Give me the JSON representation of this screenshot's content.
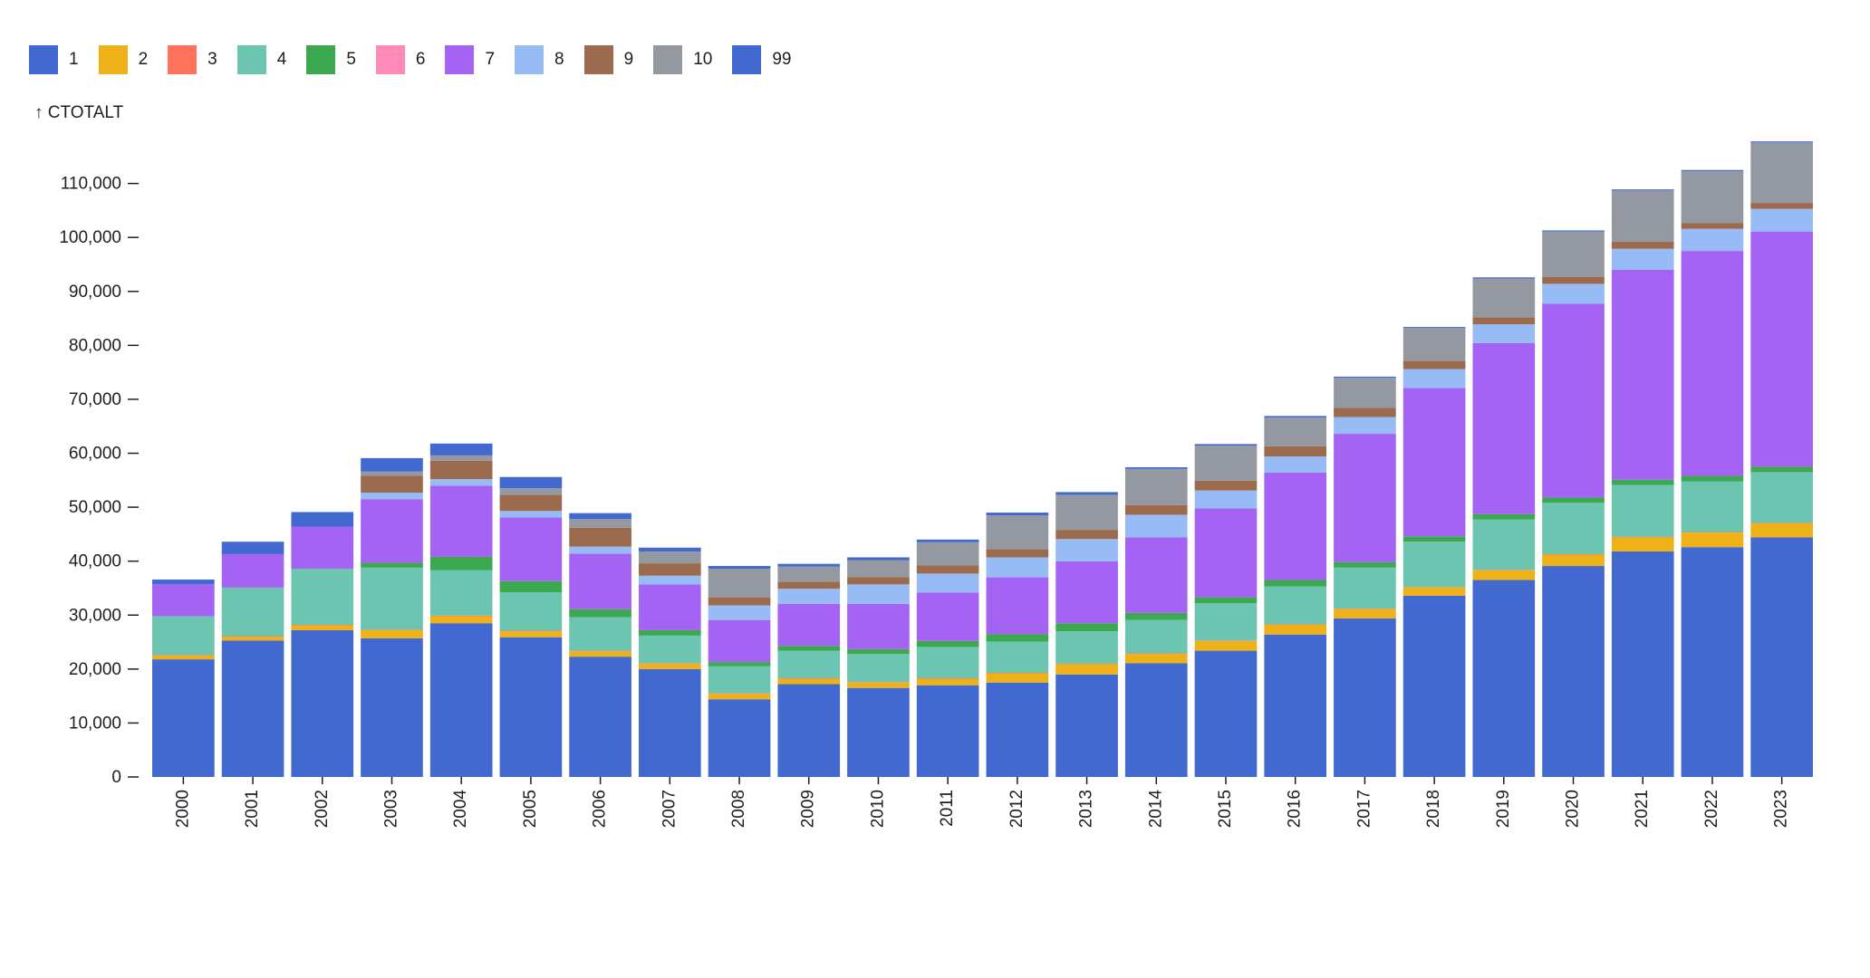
{
  "chart_data": {
    "type": "bar",
    "stacked": true,
    "ylabel": "↑ CTOTALT",
    "ylim": [
      0,
      119000
    ],
    "yticks": [
      0,
      10000,
      20000,
      30000,
      40000,
      50000,
      60000,
      70000,
      80000,
      90000,
      100000,
      110000
    ],
    "ytick_labels": [
      "0",
      "10,000",
      "20,000",
      "30,000",
      "40,000",
      "50,000",
      "60,000",
      "70,000",
      "80,000",
      "90,000",
      "100,000",
      "110,000"
    ],
    "legend_position": "top-left",
    "categories": [
      "2000",
      "2001",
      "2002",
      "2003",
      "2004",
      "2005",
      "2006",
      "2007",
      "2008",
      "2009",
      "2010",
      "2011",
      "2012",
      "2013",
      "2014",
      "2015",
      "2016",
      "2017",
      "2018",
      "2019",
      "2020",
      "2021",
      "2022",
      "2023"
    ],
    "series": [
      {
        "name": "1",
        "color": "#4269d0",
        "values": [
          21800,
          25300,
          27200,
          25700,
          28500,
          25900,
          22300,
          20000,
          14400,
          17200,
          16500,
          17000,
          17500,
          19000,
          21100,
          23400,
          26400,
          29400,
          33600,
          36500,
          39100,
          41800,
          42600,
          44400
        ]
      },
      {
        "name": "2",
        "color": "#efb118",
        "values": [
          700,
          700,
          900,
          1500,
          1300,
          1100,
          1000,
          1000,
          1000,
          1000,
          1000,
          1200,
          1700,
          1900,
          1700,
          1800,
          1800,
          1700,
          1500,
          1800,
          2100,
          2600,
          2700,
          2600
        ]
      },
      {
        "name": "3",
        "color": "#ff725c",
        "values": [
          100,
          100,
          100,
          100,
          100,
          100,
          100,
          100,
          100,
          100,
          100,
          100,
          100,
          100,
          100,
          100,
          100,
          100,
          100,
          100,
          100,
          100,
          100,
          100
        ]
      },
      {
        "name": "4",
        "color": "#6cc5b0",
        "values": [
          7200,
          9000,
          10400,
          11500,
          8400,
          7100,
          6200,
          5100,
          5000,
          5100,
          5200,
          5800,
          5800,
          6000,
          6200,
          6900,
          7000,
          7600,
          8400,
          9300,
          9500,
          9600,
          9400,
          9400
        ]
      },
      {
        "name": "5",
        "color": "#3ca951",
        "values": [
          0,
          0,
          0,
          900,
          2500,
          2100,
          1500,
          1000,
          800,
          900,
          900,
          1100,
          1400,
          1500,
          1300,
          1100,
          1200,
          1000,
          1000,
          1000,
          1000,
          1000,
          1000,
          1000
        ]
      },
      {
        "name": "6",
        "color": "#ff8ab7",
        "values": [
          0,
          0,
          0,
          0,
          0,
          0,
          0,
          0,
          0,
          0,
          0,
          0,
          0,
          0,
          0,
          0,
          0,
          0,
          0,
          0,
          0,
          0,
          0,
          0
        ]
      },
      {
        "name": "7",
        "color": "#a463f2",
        "values": [
          5900,
          6200,
          7800,
          11800,
          13200,
          11800,
          10300,
          8500,
          7800,
          7800,
          8400,
          9000,
          10500,
          11500,
          14000,
          16500,
          19900,
          23800,
          27500,
          31700,
          35900,
          38900,
          41700,
          43600
        ]
      },
      {
        "name": "8",
        "color": "#97bbf5",
        "values": [
          0,
          0,
          0,
          1200,
          1200,
          1200,
          1300,
          1600,
          2700,
          2800,
          3600,
          3500,
          3700,
          4100,
          4200,
          3300,
          3000,
          3100,
          3500,
          3500,
          3700,
          3900,
          4100,
          4200
        ]
      },
      {
        "name": "9",
        "color": "#9c6b4e",
        "values": [
          0,
          0,
          0,
          3100,
          3400,
          3000,
          3500,
          2300,
          1500,
          1300,
          1300,
          1500,
          1500,
          1700,
          1800,
          1800,
          1900,
          1700,
          1500,
          1300,
          1300,
          1300,
          1100,
          1100
        ]
      },
      {
        "name": "10",
        "color": "#9498a0",
        "values": [
          0,
          0,
          0,
          800,
          1000,
          1200,
          1600,
          2200,
          5300,
          2800,
          3200,
          4300,
          6300,
          6500,
          6700,
          6500,
          5300,
          5600,
          6100,
          7200,
          8400,
          9500,
          9600,
          11200
        ]
      },
      {
        "name": "99",
        "color": "#4269d0",
        "values": [
          900,
          2300,
          2700,
          2500,
          2200,
          2100,
          1100,
          700,
          500,
          500,
          500,
          500,
          500,
          500,
          300,
          300,
          300,
          200,
          200,
          200,
          200,
          200,
          200,
          200
        ]
      }
    ]
  }
}
